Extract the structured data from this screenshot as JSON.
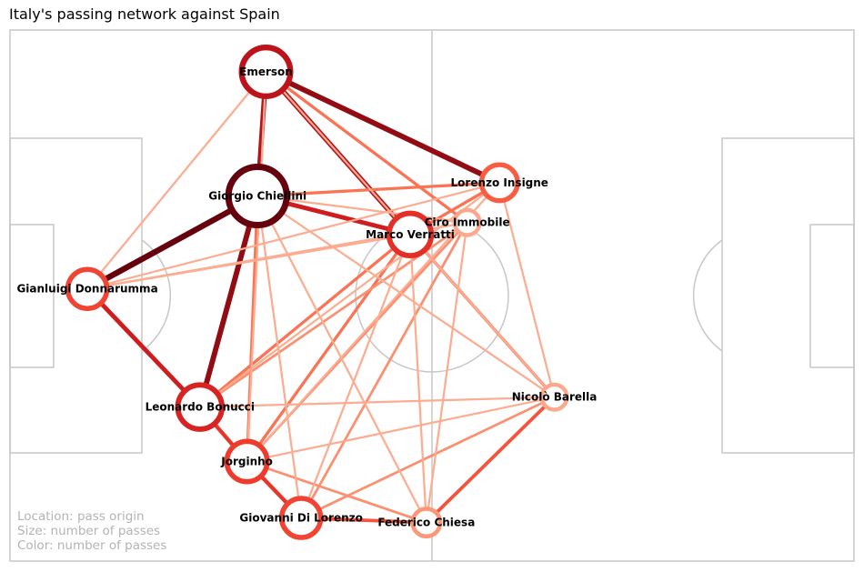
{
  "chart_data": {
    "type": "network",
    "title": "Italy's passing network against Spain",
    "notes": [
      "Location: pass origin",
      "Size: number of passes",
      "Color: number of passes"
    ],
    "pitch": {
      "length": 120,
      "width": 80,
      "line_color": "#c7c7c7"
    },
    "color_scale": "Reds",
    "nodes": [
      {
        "id": "emerson",
        "name": "Emerson",
        "x": 36.4,
        "y": 6.3,
        "passes": 45
      },
      {
        "id": "chiellini",
        "name": "Giorgio Chiellini",
        "x": 35.2,
        "y": 25.0,
        "passes": 60
      },
      {
        "id": "insigne",
        "name": "Lorenzo Insigne",
        "x": 69.6,
        "y": 23.0,
        "passes": 25
      },
      {
        "id": "immobile",
        "name": "Ciro Immobile",
        "x": 65.0,
        "y": 29.0,
        "passes": 8
      },
      {
        "id": "verratti",
        "name": "Marco Verratti",
        "x": 56.9,
        "y": 30.8,
        "passes": 35
      },
      {
        "id": "donnarumma",
        "name": "Gianluigi Donnarumma",
        "x": 11.0,
        "y": 39.0,
        "passes": 30
      },
      {
        "id": "bonucci",
        "name": "Leonardo Bonucci",
        "x": 27.0,
        "y": 56.8,
        "passes": 38
      },
      {
        "id": "barella",
        "name": "Nicolò Barella",
        "x": 77.4,
        "y": 55.3,
        "passes": 8
      },
      {
        "id": "jorginho",
        "name": "Jorginho",
        "x": 33.7,
        "y": 65.0,
        "passes": 32
      },
      {
        "id": "dilorenzo",
        "name": "Giovanni Di Lorenzo",
        "x": 41.4,
        "y": 73.5,
        "passes": 30
      },
      {
        "id": "chiesa",
        "name": "Federico Chiesa",
        "x": 59.2,
        "y": 74.2,
        "passes": 12
      }
    ],
    "edges": [
      {
        "source": "donnarumma",
        "target": "chiellini",
        "passes": 10
      },
      {
        "source": "chiellini",
        "target": "bonucci",
        "passes": 9
      },
      {
        "source": "emerson",
        "target": "insigne",
        "passes": 9
      },
      {
        "source": "emerson",
        "target": "chiellini",
        "passes": 8
      },
      {
        "source": "emerson",
        "target": "verratti",
        "passes": 8
      },
      {
        "source": "chiellini",
        "target": "verratti",
        "passes": 7
      },
      {
        "source": "donnarumma",
        "target": "bonucci",
        "passes": 7
      },
      {
        "source": "bonucci",
        "target": "jorginho",
        "passes": 6
      },
      {
        "source": "jorginho",
        "target": "dilorenzo",
        "passes": 6
      },
      {
        "source": "chiesa",
        "target": "barella",
        "passes": 5
      },
      {
        "source": "dilorenzo",
        "target": "chiesa",
        "passes": 5
      },
      {
        "source": "emerson",
        "target": "immobile",
        "passes": 4
      },
      {
        "source": "chiellini",
        "target": "insigne",
        "passes": 4
      },
      {
        "source": "insigne",
        "target": "verratti",
        "passes": 4
      },
      {
        "source": "chiellini",
        "target": "jorginho",
        "passes": 4
      },
      {
        "source": "verratti",
        "target": "bonucci",
        "passes": 4
      },
      {
        "source": "verratti",
        "target": "jorginho",
        "passes": 4
      },
      {
        "source": "verratti",
        "target": "barella",
        "passes": 4
      },
      {
        "source": "jorginho",
        "target": "chiesa",
        "passes": 3
      },
      {
        "source": "bonucci",
        "target": "immobile",
        "passes": 3
      },
      {
        "source": "dilorenzo",
        "target": "barella",
        "passes": 3
      },
      {
        "source": "jorginho",
        "target": "immobile",
        "passes": 3
      },
      {
        "source": "immobile",
        "target": "dilorenzo",
        "passes": 3
      },
      {
        "source": "emerson",
        "target": "donnarumma",
        "passes": 2
      },
      {
        "source": "donnarumma",
        "target": "insigne",
        "passes": 2
      },
      {
        "source": "donnarumma",
        "target": "immobile",
        "passes": 2
      },
      {
        "source": "donnarumma",
        "target": "verratti",
        "passes": 2
      },
      {
        "source": "chiellini",
        "target": "immobile",
        "passes": 2
      },
      {
        "source": "chiellini",
        "target": "barella",
        "passes": 2
      },
      {
        "source": "bonucci",
        "target": "barella",
        "passes": 2
      },
      {
        "source": "insigne",
        "target": "barella",
        "passes": 2
      },
      {
        "source": "insigne",
        "target": "jorginho",
        "passes": 2
      },
      {
        "source": "verratti",
        "target": "dilorenzo",
        "passes": 2
      },
      {
        "source": "verratti",
        "target": "chiesa",
        "passes": 2
      },
      {
        "source": "immobile",
        "target": "chiesa",
        "passes": 2
      },
      {
        "source": "chiellini",
        "target": "dilorenzo",
        "passes": 2
      },
      {
        "source": "insigne",
        "target": "bonucci",
        "passes": 2
      },
      {
        "source": "jorginho",
        "target": "barella",
        "passes": 2
      },
      {
        "source": "emerson",
        "target": "jorginho",
        "passes": 2
      },
      {
        "source": "chiellini",
        "target": "chiesa",
        "passes": 2
      },
      {
        "source": "emerson",
        "target": "barella",
        "passes": 2
      }
    ]
  }
}
